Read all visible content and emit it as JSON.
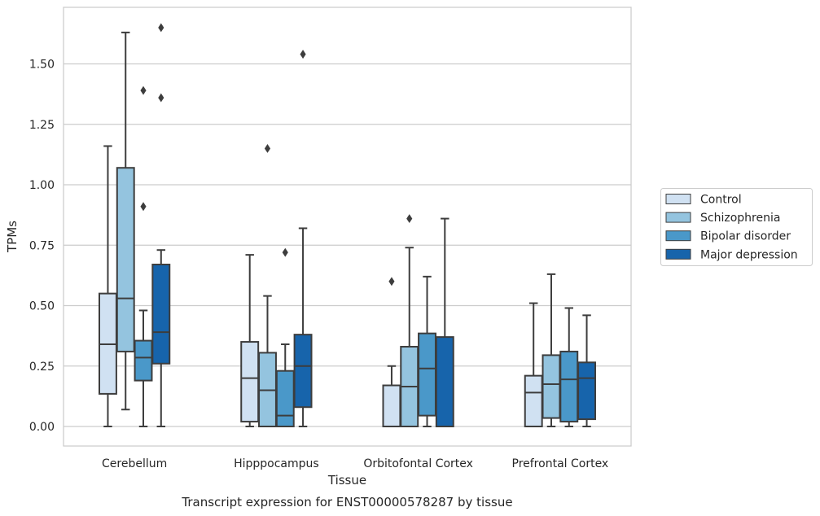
{
  "chart_data": {
    "type": "box",
    "title": "",
    "xlabel": "Tissue",
    "ylabel": "TPMs",
    "caption": "Transcript expression for ENST00000578287 by tissue",
    "categories": [
      "Cerebellum",
      "Hipppocampus",
      "Orbitofontal Cortex",
      "Prefrontal Cortex"
    ],
    "ylim": [
      -0.08,
      1.74
    ],
    "yticks": [
      0.0,
      0.25,
      0.5,
      0.75,
      1.0,
      1.25,
      1.5
    ],
    "ytick_labels": [
      "0.00",
      "0.25",
      "0.50",
      "0.75",
      "1.00",
      "1.25",
      "1.50"
    ],
    "grid": "horizontal",
    "legend_position": "right",
    "series": [
      {
        "name": "Control",
        "color": "#d0e1f2",
        "boxes": [
          {
            "whislo": 0.0,
            "q1": 0.135,
            "med": 0.34,
            "q3": 0.55,
            "whishi": 1.16,
            "fliers": []
          },
          {
            "whislo": 0.0,
            "q1": 0.02,
            "med": 0.2,
            "q3": 0.35,
            "whishi": 0.71,
            "fliers": []
          },
          {
            "whislo": 0.0,
            "q1": 0.0,
            "med": 0.0,
            "q3": 0.17,
            "whishi": 0.25,
            "fliers": [
              0.6
            ]
          },
          {
            "whislo": 0.0,
            "q1": 0.0,
            "med": 0.14,
            "q3": 0.21,
            "whishi": 0.51,
            "fliers": []
          }
        ]
      },
      {
        "name": "Schizophrenia",
        "color": "#94c4df",
        "boxes": [
          {
            "whislo": 0.07,
            "q1": 0.31,
            "med": 0.53,
            "q3": 1.07,
            "whishi": 1.63,
            "fliers": []
          },
          {
            "whislo": 0.0,
            "q1": 0.0,
            "med": 0.15,
            "q3": 0.305,
            "whishi": 0.54,
            "fliers": [
              1.15
            ]
          },
          {
            "whislo": 0.0,
            "q1": 0.0,
            "med": 0.165,
            "q3": 0.33,
            "whishi": 0.74,
            "fliers": [
              0.86
            ]
          },
          {
            "whislo": 0.0,
            "q1": 0.035,
            "med": 0.175,
            "q3": 0.295,
            "whishi": 0.63,
            "fliers": []
          }
        ]
      },
      {
        "name": "Bipolar disorder",
        "color": "#4a98c9",
        "boxes": [
          {
            "whislo": 0.0,
            "q1": 0.19,
            "med": 0.285,
            "q3": 0.355,
            "whishi": 0.48,
            "fliers": [
              0.91,
              1.39
            ]
          },
          {
            "whislo": 0.0,
            "q1": 0.0,
            "med": 0.045,
            "q3": 0.23,
            "whishi": 0.34,
            "fliers": [
              0.72
            ]
          },
          {
            "whislo": 0.0,
            "q1": 0.045,
            "med": 0.24,
            "q3": 0.385,
            "whishi": 0.62,
            "fliers": []
          },
          {
            "whislo": 0.0,
            "q1": 0.02,
            "med": 0.195,
            "q3": 0.31,
            "whishi": 0.49,
            "fliers": []
          }
        ]
      },
      {
        "name": "Major depression",
        "color": "#1764ab",
        "boxes": [
          {
            "whislo": 0.0,
            "q1": 0.26,
            "med": 0.39,
            "q3": 0.67,
            "whishi": 0.73,
            "fliers": [
              1.36,
              1.65
            ]
          },
          {
            "whislo": 0.0,
            "q1": 0.08,
            "med": 0.25,
            "q3": 0.38,
            "whishi": 0.82,
            "fliers": [
              1.54
            ]
          },
          {
            "whislo": 0.0,
            "q1": 0.0,
            "med": 0.0,
            "q3": 0.37,
            "whishi": 0.86,
            "fliers": []
          },
          {
            "whislo": 0.0,
            "q1": 0.03,
            "med": 0.2,
            "q3": 0.265,
            "whishi": 0.46,
            "fliers": []
          }
        ]
      }
    ]
  }
}
